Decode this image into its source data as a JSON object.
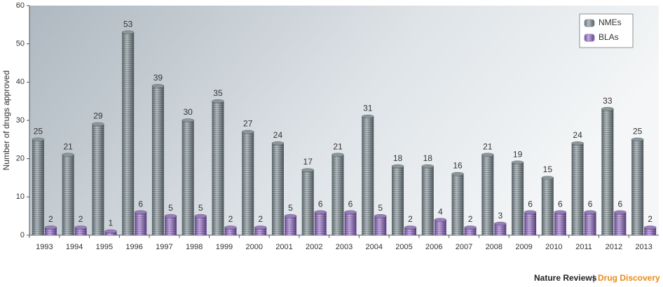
{
  "chart_data": {
    "type": "bar",
    "y_label": "Number of drugs approved",
    "categories": [
      "1993",
      "1994",
      "1995",
      "1996",
      "1997",
      "1998",
      "1999",
      "2000",
      "2001",
      "2002",
      "2003",
      "2004",
      "2005",
      "2006",
      "2007",
      "2008",
      "2009",
      "2010",
      "2011",
      "2012",
      "2013"
    ],
    "series": [
      {
        "name": "NMEs",
        "color": "#8c979c",
        "values": [
          25,
          21,
          29,
          53,
          39,
          30,
          35,
          27,
          24,
          17,
          21,
          31,
          18,
          18,
          16,
          21,
          19,
          15,
          24,
          33,
          25
        ]
      },
      {
        "name": "BLAs",
        "color": "#9a7cc0",
        "values": [
          2,
          2,
          1,
          6,
          5,
          5,
          2,
          2,
          5,
          6,
          6,
          5,
          2,
          4,
          2,
          3,
          6,
          6,
          6,
          6,
          2
        ]
      }
    ],
    "ylim": [
      0,
      60
    ],
    "yticks": [
      0,
      10,
      20,
      30,
      40,
      50,
      60
    ],
    "legend": "upper right",
    "source": "Nature Reviews",
    "source_separator": "|",
    "source_journal": "Drug Discovery"
  }
}
